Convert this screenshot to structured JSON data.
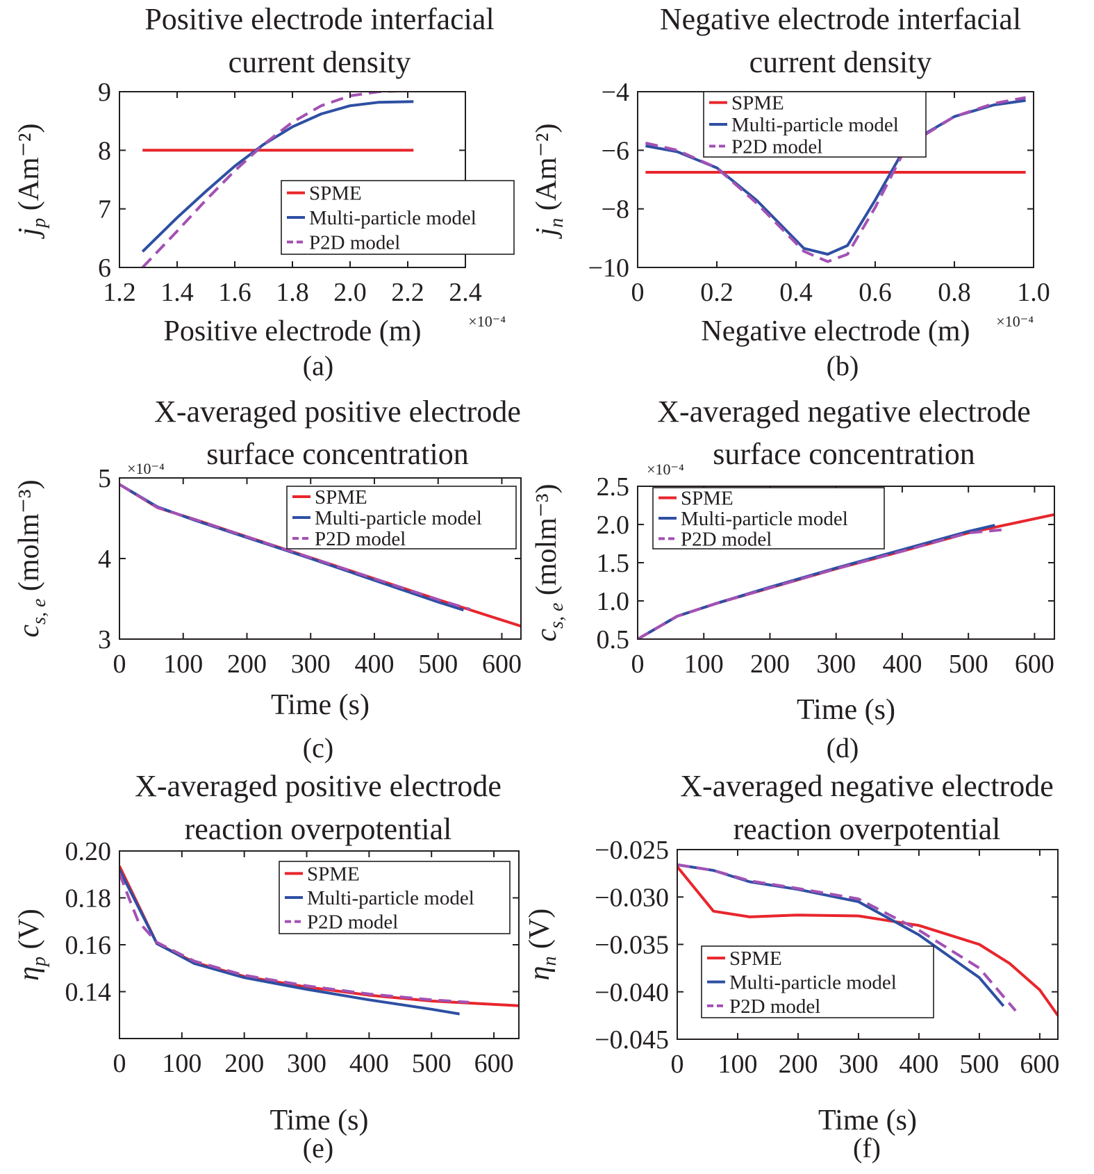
{
  "figure": {
    "colors": {
      "SPME": "#e8262c",
      "Multi-particle model": "#2e4fa3",
      "P2D model": "#a351b4",
      "axis": "#231f20"
    }
  },
  "chart_data": [
    {
      "id": "a",
      "type": "line",
      "panel_label": "(a)",
      "title_lines": [
        "Positive electrode interfacial",
        "current density"
      ],
      "xlabel": "Positive electrode (m)",
      "x_multiplier": "×10⁻⁴",
      "ylabel_main": "j",
      "ylabel_sub": "p",
      "ylabel_unit": "(Am⁻²)",
      "xlim": [
        1.2,
        2.4
      ],
      "ylim": [
        6,
        9
      ],
      "xticks": [
        1.2,
        1.4,
        1.6,
        1.8,
        2.0,
        2.2,
        2.4
      ],
      "xtick_labels": [
        "1.2",
        "1.4",
        "1.6",
        "1.8",
        "2.0",
        "2.2",
        "2.4"
      ],
      "yticks": [
        6,
        7,
        8,
        9
      ],
      "ytick_labels": [
        "6",
        "7",
        "8",
        "9"
      ],
      "legend_position": "bottom-right",
      "series": [
        {
          "name": "SPME",
          "style": "solid",
          "x": [
            1.28,
            2.22
          ],
          "y": [
            8.0,
            8.0
          ]
        },
        {
          "name": "Multi-particle model",
          "style": "solid",
          "x": [
            1.28,
            1.4,
            1.5,
            1.6,
            1.7,
            1.8,
            1.9,
            2.0,
            2.1,
            2.22
          ],
          "y": [
            6.27,
            6.85,
            7.3,
            7.73,
            8.1,
            8.4,
            8.62,
            8.76,
            8.82,
            8.83
          ]
        },
        {
          "name": "P2D model",
          "style": "dashed",
          "x": [
            1.28,
            1.4,
            1.5,
            1.6,
            1.7,
            1.8,
            1.9,
            2.0,
            2.1,
            2.22
          ],
          "y": [
            6.0,
            6.62,
            7.15,
            7.65,
            8.1,
            8.48,
            8.76,
            8.93,
            9.0,
            9.02
          ]
        }
      ]
    },
    {
      "id": "b",
      "type": "line",
      "panel_label": "(b)",
      "title_lines": [
        "Negative electrode interfacial",
        "current density"
      ],
      "xlabel": "Negative electrode (m)",
      "x_multiplier": "×10⁻⁴",
      "ylabel_main": "j",
      "ylabel_sub": "n",
      "ylabel_unit": "(Am⁻²)",
      "xlim": [
        0,
        1.0
      ],
      "ylim": [
        -10,
        -4
      ],
      "xticks": [
        0,
        0.2,
        0.4,
        0.6,
        0.8,
        1.0
      ],
      "xtick_labels": [
        "0",
        "0.2",
        "0.4",
        "0.6",
        "0.8",
        "1.0"
      ],
      "yticks": [
        -10,
        -8,
        -6,
        -4
      ],
      "ytick_labels": [
        "−10",
        "−8",
        "−6",
        "−4"
      ],
      "legend_position": "top-left",
      "series": [
        {
          "name": "SPME",
          "style": "solid",
          "x": [
            0.02,
            0.98
          ],
          "y": [
            -6.75,
            -6.75
          ]
        },
        {
          "name": "Multi-particle model",
          "style": "solid",
          "x": [
            0.02,
            0.1,
            0.2,
            0.3,
            0.42,
            0.48,
            0.53,
            0.6,
            0.68,
            0.8,
            0.9,
            0.98
          ],
          "y": [
            -5.85,
            -6.05,
            -6.6,
            -7.7,
            -9.35,
            -9.55,
            -9.25,
            -7.7,
            -5.8,
            -4.85,
            -4.45,
            -4.3
          ]
        },
        {
          "name": "P2D model",
          "style": "dashed",
          "x": [
            0.02,
            0.1,
            0.2,
            0.3,
            0.42,
            0.48,
            0.53,
            0.6,
            0.68,
            0.8,
            0.9,
            0.98
          ],
          "y": [
            -5.75,
            -6.0,
            -6.6,
            -7.8,
            -9.45,
            -9.8,
            -9.55,
            -7.95,
            -5.85,
            -4.85,
            -4.4,
            -4.2
          ]
        }
      ]
    },
    {
      "id": "c",
      "type": "line",
      "panel_label": "(c)",
      "title_lines": [
        "X-averaged positive electrode",
        "surface concentration"
      ],
      "xlabel": "Time (s)",
      "y_multiplier": "×10⁻⁴",
      "ylabel_main": "c",
      "ylabel_sub": "s, e",
      "ylabel_unit": "(molm⁻³)",
      "xlim": [
        0,
        630
      ],
      "ylim": [
        3,
        5
      ],
      "xticks": [
        0,
        100,
        200,
        300,
        400,
        500,
        600
      ],
      "xtick_labels": [
        "0",
        "100",
        "200",
        "300",
        "400",
        "500",
        "600"
      ],
      "yticks": [
        3,
        4,
        5
      ],
      "ytick_labels": [
        "3",
        "4",
        "5"
      ],
      "legend_position": "top-right",
      "series": [
        {
          "name": "SPME",
          "style": "solid",
          "x": [
            0,
            60,
            120,
            200,
            300,
            400,
            500,
            630
          ],
          "y": [
            4.92,
            4.63,
            4.48,
            4.27,
            4.01,
            3.75,
            3.49,
            3.16
          ]
        },
        {
          "name": "Multi-particle model",
          "style": "solid",
          "x": [
            0,
            60,
            120,
            200,
            300,
            400,
            500,
            540
          ],
          "y": [
            4.92,
            4.64,
            4.47,
            4.26,
            4.0,
            3.73,
            3.46,
            3.36
          ]
        },
        {
          "name": "P2D model",
          "style": "dashed",
          "x": [
            0,
            60,
            120,
            200,
            300,
            400,
            500,
            550
          ],
          "y": [
            4.92,
            4.63,
            4.48,
            4.27,
            4.01,
            3.75,
            3.49,
            3.37
          ]
        }
      ]
    },
    {
      "id": "d",
      "type": "line",
      "panel_label": "(d)",
      "title_lines": [
        "X-averaged negative electrode",
        "surface concentration"
      ],
      "xlabel": "Time (s)",
      "y_multiplier": "×10⁻⁴",
      "ylabel_main": "c",
      "ylabel_sub": "s, e",
      "ylabel_unit": "(molm⁻³)",
      "xlim": [
        0,
        630
      ],
      "ylim": [
        0.5,
        2.5
      ],
      "xticks": [
        0,
        100,
        200,
        300,
        400,
        500,
        600
      ],
      "xtick_labels": [
        "0",
        "100",
        "200",
        "300",
        "400",
        "500",
        "600"
      ],
      "yticks": [
        0.5,
        1.0,
        1.5,
        2.0,
        2.5
      ],
      "ytick_labels": [
        "0.5",
        "1.0",
        "1.5",
        "2.0",
        "2.5"
      ],
      "legend_position": "top-left",
      "series": [
        {
          "name": "SPME",
          "style": "solid",
          "x": [
            0,
            60,
            120,
            200,
            300,
            400,
            500,
            630
          ],
          "y": [
            0.5,
            0.8,
            0.97,
            1.17,
            1.42,
            1.65,
            1.89,
            2.13
          ]
        },
        {
          "name": "Multi-particle model",
          "style": "solid",
          "x": [
            0,
            60,
            120,
            200,
            300,
            400,
            500,
            540
          ],
          "y": [
            0.5,
            0.8,
            0.97,
            1.18,
            1.43,
            1.67,
            1.91,
            1.99
          ]
        },
        {
          "name": "P2D model",
          "style": "dashed",
          "x": [
            0,
            60,
            120,
            200,
            300,
            400,
            500,
            550
          ],
          "y": [
            0.5,
            0.8,
            0.97,
            1.17,
            1.42,
            1.65,
            1.89,
            1.93
          ]
        }
      ]
    },
    {
      "id": "e",
      "type": "line",
      "panel_label": "(e)",
      "title_lines": [
        "X-averaged positive electrode",
        "reaction overpotential"
      ],
      "xlabel": "Time (s)",
      "ylabel_main": "η",
      "ylabel_sub": "p",
      "ylabel_unit": "(V)",
      "xlim": [
        0,
        640
      ],
      "ylim": [
        0.12,
        0.2
      ],
      "xticks": [
        0,
        100,
        200,
        300,
        400,
        500,
        600
      ],
      "xtick_labels": [
        "0",
        "100",
        "200",
        "300",
        "400",
        "500",
        "600"
      ],
      "yticks": [
        0.14,
        0.16,
        0.18,
        0.2
      ],
      "ytick_labels": [
        "0.14",
        "0.16",
        "0.18",
        "0.20"
      ],
      "legend_position": "top-right",
      "series": [
        {
          "name": "SPME",
          "style": "solid",
          "x": [
            0,
            60,
            120,
            200,
            300,
            400,
            500,
            640
          ],
          "y": [
            0.1935,
            0.1605,
            0.1525,
            0.1465,
            0.142,
            0.1385,
            0.136,
            0.134
          ]
        },
        {
          "name": "Multi-particle model",
          "style": "solid",
          "x": [
            0,
            60,
            120,
            200,
            300,
            400,
            500,
            545
          ],
          "y": [
            0.192,
            0.1605,
            0.152,
            0.146,
            0.141,
            0.1365,
            0.1325,
            0.1305
          ]
        },
        {
          "name": "P2D model",
          "style": "dashed",
          "x": [
            0,
            15,
            30,
            60,
            120,
            200,
            300,
            400,
            500,
            560
          ],
          "y": [
            0.1905,
            0.18,
            0.17,
            0.161,
            0.153,
            0.147,
            0.1425,
            0.139,
            0.1365,
            0.1355
          ]
        }
      ]
    },
    {
      "id": "f",
      "type": "line",
      "panel_label": "(f)",
      "title_lines": [
        "X-averaged negative electrode",
        "reaction overpotential"
      ],
      "xlabel": "Time (s)",
      "ylabel_main": "η",
      "ylabel_sub": "n",
      "ylabel_unit": "(V)",
      "xlim": [
        0,
        630
      ],
      "ylim": [
        -0.045,
        -0.025
      ],
      "xticks": [
        0,
        100,
        200,
        300,
        400,
        500,
        600
      ],
      "xtick_labels": [
        "0",
        "100",
        "200",
        "300",
        "400",
        "500",
        "600"
      ],
      "yticks": [
        -0.045,
        -0.04,
        -0.035,
        -0.03,
        -0.025
      ],
      "ytick_labels": [
        "−0.045",
        "−0.040",
        "−0.035",
        "−0.030",
        "−0.025"
      ],
      "legend_position": "bottom-left",
      "series": [
        {
          "name": "SPME",
          "style": "solid",
          "x": [
            0,
            60,
            120,
            200,
            300,
            400,
            500,
            550,
            600,
            630
          ],
          "y": [
            -0.0268,
            -0.0315,
            -0.0321,
            -0.0319,
            -0.032,
            -0.033,
            -0.035,
            -0.037,
            -0.0398,
            -0.0425
          ]
        },
        {
          "name": "Multi-particle model",
          "style": "solid",
          "x": [
            0,
            60,
            120,
            200,
            300,
            400,
            500,
            540
          ],
          "y": [
            -0.0266,
            -0.0272,
            -0.0284,
            -0.0292,
            -0.0305,
            -0.034,
            -0.0385,
            -0.0415
          ]
        },
        {
          "name": "P2D model",
          "style": "dashed",
          "x": [
            0,
            60,
            120,
            200,
            300,
            400,
            500,
            560
          ],
          "y": [
            -0.0266,
            -0.0272,
            -0.0283,
            -0.0291,
            -0.0302,
            -0.0335,
            -0.0375,
            -0.042
          ]
        }
      ]
    }
  ]
}
